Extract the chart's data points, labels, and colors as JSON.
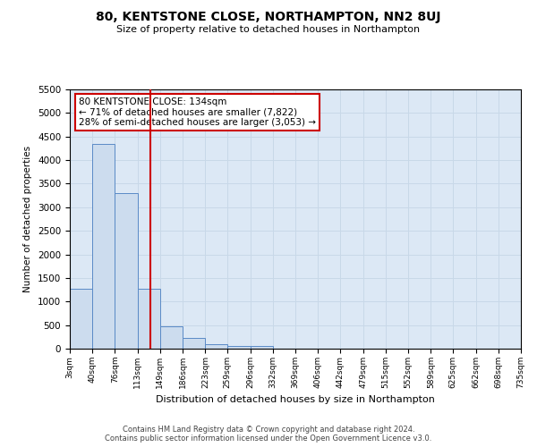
{
  "title": "80, KENTSTONE CLOSE, NORTHAMPTON, NN2 8UJ",
  "subtitle": "Size of property relative to detached houses in Northampton",
  "xlabel": "Distribution of detached houses by size in Northampton",
  "ylabel": "Number of detached properties",
  "bin_edges": [
    3,
    40,
    76,
    113,
    149,
    186,
    223,
    259,
    296,
    332,
    369,
    406,
    442,
    479,
    515,
    552,
    589,
    625,
    662,
    698,
    735
  ],
  "bar_heights": [
    1270,
    4350,
    3300,
    1270,
    480,
    230,
    95,
    60,
    50,
    0,
    0,
    0,
    0,
    0,
    0,
    0,
    0,
    0,
    0,
    0
  ],
  "bar_color": "#ccdcee",
  "bar_edge_color": "#5a8ac6",
  "property_size": 134,
  "red_line_color": "#cc0000",
  "annotation_line1": "80 KENTSTONE CLOSE: 134sqm",
  "annotation_line2": "← 71% of detached houses are smaller (7,822)",
  "annotation_line3": "28% of semi-detached houses are larger (3,053) →",
  "annotation_box_color": "#ffffff",
  "annotation_box_edge_color": "#cc0000",
  "ylim": [
    0,
    5500
  ],
  "yticks": [
    0,
    500,
    1000,
    1500,
    2000,
    2500,
    3000,
    3500,
    4000,
    4500,
    5000,
    5500
  ],
  "grid_color": "#c8d8e8",
  "background_color": "#dce8f5",
  "footer_line1": "Contains HM Land Registry data © Crown copyright and database right 2024.",
  "footer_line2": "Contains public sector information licensed under the Open Government Licence v3.0.",
  "tick_labels": [
    "3sqm",
    "40sqm",
    "76sqm",
    "113sqm",
    "149sqm",
    "186sqm",
    "223sqm",
    "259sqm",
    "296sqm",
    "332sqm",
    "369sqm",
    "406sqm",
    "442sqm",
    "479sqm",
    "515sqm",
    "552sqm",
    "589sqm",
    "625sqm",
    "662sqm",
    "698sqm",
    "735sqm"
  ]
}
